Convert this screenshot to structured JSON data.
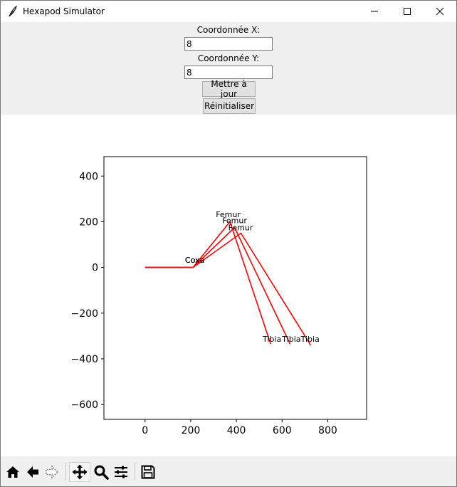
{
  "window": {
    "title": "Hexapod Simulator"
  },
  "controls": {
    "x_label": "Coordonnée X:",
    "x_value": "8",
    "y_label": "Coordonnée Y:",
    "y_value": "8",
    "update_button": "Mettre à jour",
    "reset_button": "Réinitialiser"
  },
  "toolbar": {
    "icons": [
      "home-icon",
      "back-arrow-icon",
      "forward-arrow-icon",
      "pan-icon",
      "zoom-icon",
      "configure-subplots-icon",
      "save-icon"
    ]
  },
  "colors": {
    "line": "#ff0000",
    "panel_bg": "#f0f0f0",
    "button_bg": "#e1e1e1"
  },
  "chart_data": {
    "type": "line",
    "title": "",
    "xlabel": "",
    "ylabel": "",
    "xlim": [
      -180,
      970
    ],
    "ylim": [
      -665,
      485
    ],
    "xticks": [
      0,
      200,
      400,
      600,
      800
    ],
    "yticks": [
      400,
      200,
      0,
      -200,
      -400,
      -600
    ],
    "grid": false,
    "series": [
      {
        "points": [
          [
            0,
            0
          ],
          [
            210,
            0
          ],
          [
            372,
            200
          ],
          [
            550,
            -335
          ]
        ]
      },
      {
        "points": [
          [
            0,
            0
          ],
          [
            210,
            0
          ],
          [
            392,
            175
          ],
          [
            635,
            -335
          ]
        ]
      },
      {
        "points": [
          [
            0,
            0
          ],
          [
            210,
            0
          ],
          [
            420,
            150
          ],
          [
            725,
            -340
          ]
        ]
      }
    ],
    "annotations": [
      {
        "text": "Coxa",
        "x": 175,
        "y": 20
      },
      {
        "text": "Coxa",
        "x": 175,
        "y": 20
      },
      {
        "text": "Coxa",
        "x": 175,
        "y": 20
      },
      {
        "text": "Femur",
        "x": 310,
        "y": 220
      },
      {
        "text": "Femur",
        "x": 338,
        "y": 193
      },
      {
        "text": "Femur",
        "x": 364,
        "y": 162
      },
      {
        "text": "Tibia",
        "x": 515,
        "y": -325
      },
      {
        "text": "Tibia",
        "x": 600,
        "y": -325
      },
      {
        "text": "Tibia",
        "x": 682,
        "y": -325
      }
    ]
  }
}
